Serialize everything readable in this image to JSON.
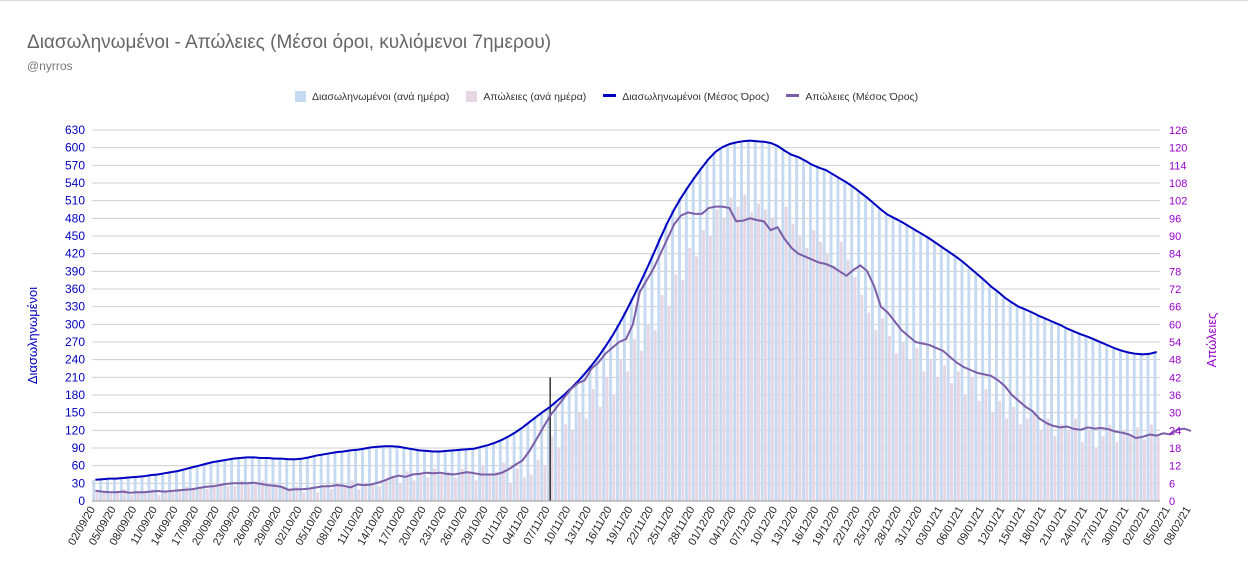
{
  "title": "Διασωληνωμένοι - Απώλειες (Μέσοι όροι, κυλιόμενοι 7ημερου)",
  "subtitle": "@nyrros",
  "legend": {
    "bars_left": "Διασωληνωμένοι (ανά ημέρα)",
    "bars_right": "Απώλειες (ανά ημέρα)",
    "line_left": "Διασωληνωμένοι (Μέσος Όρος)",
    "line_right": "Απώλειες (Μέσος Όρος)"
  },
  "colors": {
    "intubated_bar": "#c5d9f1",
    "deaths_bar": "#e6d5e2",
    "intubated_line": "#0000c0",
    "deaths_line": "#7b5ea7",
    "left_axis": "#0000c0",
    "right_axis": "#9900cc"
  },
  "chart_data": {
    "type": "bar",
    "title": "Διασωληνωμένοι - Απώλειες (Μέσοι όροι, κυλιόμενοι 7ημερου)",
    "ylabel": "Διασωληνωμένοι",
    "y2label": "Απώλειες",
    "ylim": [
      0,
      630
    ],
    "y2lim": [
      0,
      126
    ],
    "yticks": [
      0,
      30,
      60,
      90,
      120,
      150,
      180,
      210,
      240,
      270,
      300,
      330,
      360,
      390,
      420,
      450,
      480,
      510,
      540,
      570,
      600,
      630
    ],
    "y2ticks": [
      0,
      6,
      12,
      18,
      24,
      30,
      36,
      42,
      48,
      54,
      60,
      66,
      72,
      78,
      84,
      90,
      96,
      102,
      108,
      114,
      120,
      126
    ],
    "x_start": "02/09/20",
    "x_end": "08/02/21",
    "xticks": [
      "02/09/20",
      "05/09/20",
      "08/09/20",
      "11/09/20",
      "14/09/20",
      "17/09/20",
      "20/09/20",
      "23/09/20",
      "26/09/20",
      "29/09/20",
      "02/10/20",
      "05/10/20",
      "08/10/20",
      "11/10/20",
      "14/10/20",
      "17/10/20",
      "20/10/20",
      "23/10/20",
      "26/10/20",
      "29/10/20",
      "01/11/20",
      "04/11/20",
      "07/11/20",
      "10/11/20",
      "13/11/20",
      "16/11/20",
      "19/11/20",
      "22/11/20",
      "25/11/20",
      "28/11/20",
      "01/12/20",
      "04/12/20",
      "07/12/20",
      "10/12/20",
      "13/12/20",
      "16/12/20",
      "19/12/20",
      "22/12/20",
      "25/12/20",
      "28/12/20",
      "31/12/20",
      "03/01/21",
      "06/01/21",
      "09/01/21",
      "12/01/21",
      "15/01/21",
      "18/01/21",
      "21/01/21",
      "24/01/21",
      "27/01/21",
      "30/01/21",
      "02/02/21",
      "05/02/21",
      "08/02/21"
    ],
    "grid": true,
    "legend_position": "top",
    "vertical_marker": "07/11/20",
    "series": [
      {
        "name": "Διασωληνωμένοι (ανά ημέρα)",
        "kind": "bar",
        "axis": "left",
        "values": [
          36,
          37,
          38,
          38,
          39,
          40,
          41,
          42,
          44,
          45,
          47,
          49,
          51,
          54,
          57,
          60,
          63,
          66,
          68,
          70,
          72,
          73,
          74,
          74,
          73,
          73,
          72,
          72,
          71,
          71,
          72,
          74,
          77,
          79,
          81,
          83,
          84,
          86,
          87,
          89,
          91,
          92,
          93,
          93,
          92,
          90,
          88,
          86,
          85,
          84,
          84,
          85,
          86,
          87,
          88,
          89,
          92,
          95,
          99,
          104,
          110,
          117,
          125,
          134,
          143,
          152,
          160,
          170,
          180,
          191,
          203,
          216,
          230,
          245,
          262,
          280,
          300,
          322,
          345,
          369,
          394,
          420,
          447,
          472,
          495,
          515,
          533,
          550,
          566,
          581,
          593,
          601,
          606,
          609,
          611,
          612,
          611,
          610,
          608,
          603,
          595,
          588,
          584,
          578,
          571,
          566,
          562,
          555,
          548,
          541,
          533,
          524,
          515,
          505,
          495,
          486,
          480,
          474,
          467,
          460,
          453,
          446,
          438,
          430,
          422,
          414,
          405,
          395,
          385,
          375,
          364,
          355,
          345,
          337,
          330,
          325,
          320,
          314,
          309,
          304,
          299,
          293,
          288,
          283,
          279,
          274,
          269,
          264,
          259,
          255,
          252,
          250,
          249,
          250,
          253
        ]
      },
      {
        "name": "Απώλειες (ανά ημέρα)",
        "kind": "bar",
        "axis": "right",
        "values": [
          3,
          3,
          2.5,
          3,
          4,
          2,
          3,
          3,
          4,
          2,
          3,
          3,
          4,
          5,
          4,
          5,
          4,
          5,
          6,
          5,
          5,
          7,
          6,
          6,
          7,
          5,
          6,
          5,
          4,
          5,
          3,
          4,
          3,
          5,
          4,
          6,
          5,
          7,
          4,
          5,
          6,
          5,
          7,
          8,
          6,
          10,
          7,
          9,
          8,
          11,
          9,
          10,
          8,
          11,
          10,
          7,
          12,
          9,
          10,
          13,
          6,
          11,
          8,
          9,
          14,
          12,
          22,
          18,
          26,
          24,
          30,
          28,
          38,
          32,
          42,
          36,
          48,
          44,
          55,
          51,
          60,
          58,
          70,
          66,
          77,
          75,
          86,
          83,
          92,
          90,
          99,
          96,
          103,
          100,
          104,
          98,
          101,
          99,
          96,
          92,
          100,
          94,
          90,
          86,
          92,
          88,
          84,
          80,
          88,
          82,
          76,
          70,
          64,
          58,
          62,
          56,
          50,
          54,
          48,
          52,
          44,
          48,
          42,
          46,
          40,
          44,
          36,
          42,
          34,
          38,
          30,
          34,
          28,
          32,
          26,
          28,
          30,
          24,
          28,
          22,
          26,
          24,
          28,
          20,
          24,
          18,
          22,
          26,
          20,
          24,
          22,
          25,
          21,
          26,
          22
        ]
      },
      {
        "name": "Διασωληνωμένοι (Μέσος Όρος)",
        "kind": "line",
        "axis": "left",
        "values": [
          36,
          37,
          38,
          38,
          39,
          40,
          41,
          42,
          44,
          45,
          47,
          49,
          51,
          54,
          57,
          60,
          63,
          66,
          68,
          70,
          72,
          73,
          74,
          74,
          73,
          73,
          72,
          72,
          71,
          71,
          72,
          74,
          77,
          79,
          81,
          83,
          84,
          86,
          87,
          89,
          91,
          92,
          93,
          93,
          92,
          90,
          88,
          86,
          85,
          84,
          84,
          85,
          86,
          87,
          88,
          89,
          92,
          95,
          99,
          104,
          110,
          117,
          125,
          134,
          143,
          152,
          160,
          170,
          180,
          191,
          203,
          216,
          230,
          245,
          262,
          280,
          300,
          322,
          345,
          369,
          394,
          420,
          447,
          472,
          495,
          515,
          533,
          550,
          566,
          581,
          593,
          601,
          606,
          609,
          611,
          612,
          611,
          610,
          608,
          603,
          595,
          588,
          584,
          578,
          571,
          566,
          562,
          555,
          548,
          541,
          533,
          524,
          515,
          505,
          495,
          486,
          480,
          474,
          467,
          460,
          453,
          446,
          438,
          430,
          422,
          414,
          405,
          395,
          385,
          375,
          364,
          355,
          345,
          337,
          330,
          325,
          320,
          314,
          309,
          304,
          299,
          293,
          288,
          283,
          279,
          274,
          269,
          264,
          259,
          255,
          252,
          250,
          249,
          250,
          253
        ]
      },
      {
        "name": "Απώλειες (Μέσος Όρος)",
        "kind": "line",
        "axis": "right",
        "values": [
          3.5,
          3.2,
          3,
          3,
          3.2,
          2.8,
          3,
          3,
          3.2,
          3.4,
          3.2,
          3.4,
          3.6,
          3.8,
          4,
          4.4,
          4.8,
          5,
          5.4,
          5.8,
          6,
          6,
          6,
          6.2,
          5.8,
          5.4,
          5.2,
          4.8,
          3.8,
          4,
          4,
          4.2,
          4.6,
          5,
          5,
          5.4,
          5.2,
          4.6,
          5.6,
          5.4,
          5.6,
          6.2,
          7,
          8,
          8.6,
          8.2,
          9,
          9.2,
          9.6,
          9.4,
          9.6,
          9.2,
          9,
          9.4,
          9.8,
          9.4,
          9,
          9,
          9,
          9.6,
          10.8,
          12.4,
          13.8,
          17,
          21,
          25,
          29,
          32,
          35,
          38,
          40,
          41,
          45,
          47,
          50,
          52,
          54,
          55,
          60,
          71,
          75,
          79,
          84,
          89,
          94,
          97,
          98,
          97.5,
          97.5,
          99.5,
          100,
          100,
          99.5,
          95,
          95.2,
          96,
          95.4,
          95,
          92,
          93,
          89,
          86,
          84,
          83,
          82,
          81,
          80.5,
          79.5,
          78,
          76.5,
          78.5,
          80,
          78,
          73,
          66,
          64,
          61,
          58,
          56,
          54,
          53.5,
          53,
          52,
          51,
          49,
          47,
          45.5,
          44.5,
          43.5,
          43,
          42.5,
          41,
          39,
          36,
          34,
          32,
          30.5,
          28,
          26.5,
          25.5,
          25,
          25.3,
          24.5,
          24.2,
          25,
          24.6,
          24.8,
          24.4,
          23.6,
          23.2,
          22.6,
          21.4,
          21.8,
          22.6,
          22.2,
          23,
          22.6,
          24.2,
          24.6,
          23.8
        ]
      }
    ]
  }
}
